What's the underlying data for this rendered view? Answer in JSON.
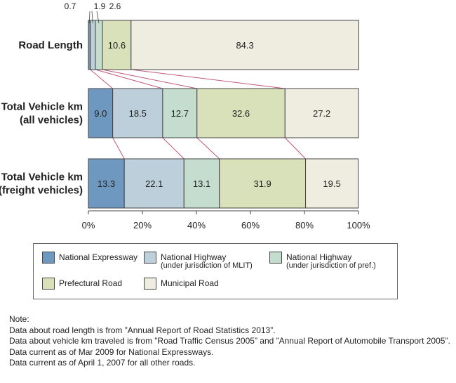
{
  "chart_data": {
    "type": "bar",
    "orientation": "horizontal",
    "stacked": true,
    "percent": true,
    "categories": [
      {
        "lines": [
          "Road Length"
        ]
      },
      {
        "lines": [
          "Total Vehicle km",
          "(all vehicles)"
        ]
      },
      {
        "lines": [
          "Total Vehicle km",
          "(freight vehicles)"
        ]
      }
    ],
    "series": [
      {
        "name": "National Expressway",
        "name_sub": "",
        "color": "#6f98c1",
        "values": [
          0.7,
          9.0,
          13.3
        ],
        "labels": [
          "0.7",
          "9.0",
          "13.3"
        ]
      },
      {
        "name": "National Highway",
        "name_sub": "(under jurisdiction of  MLIT)",
        "color": "#bccfda",
        "values": [
          1.9,
          18.5,
          22.1
        ],
        "labels": [
          "1.9",
          "18.5",
          "22.1"
        ]
      },
      {
        "name": "National Highway",
        "name_sub": "(under jurisdiction of pref.)",
        "color": "#c5ddcf",
        "values": [
          2.6,
          12.7,
          13.1
        ],
        "labels": [
          "2.6",
          "12.7",
          "13.1"
        ]
      },
      {
        "name": "Prefectural Road",
        "name_sub": "",
        "color": "#d8e1b9",
        "values": [
          10.6,
          32.6,
          31.9
        ],
        "labels": [
          "10.6",
          "32.6",
          "31.9"
        ]
      },
      {
        "name": "Municipal Road",
        "name_sub": "",
        "color": "#efeddf",
        "values": [
          84.3,
          27.2,
          19.5
        ],
        "labels": [
          "84.3",
          "27.2",
          "19.5"
        ]
      }
    ],
    "xlim": [
      0,
      100
    ],
    "x_ticks": [
      "0%",
      "20%",
      "40%",
      "60%",
      "80%",
      "100%"
    ],
    "connector_color": "#c0587a",
    "legend_position": "bottom"
  },
  "notes": [
    "Note:",
    "Data about road length is from ”Annual Report of Road Statistics 2013”.",
    "Data about vehicle km traveled is from ”Road Traffic Census 2005” and ”Annual Report of Automobile Transport 2005”.",
    "Data current as of Mar 2009 for National Expressways.",
    "Data current as of April 1, 2007 for all other roads."
  ]
}
